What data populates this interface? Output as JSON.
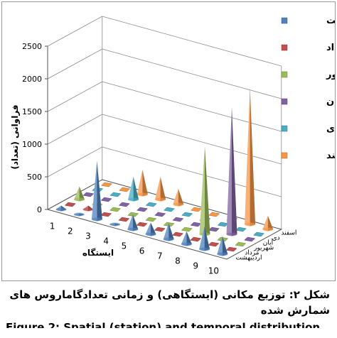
{
  "chart_data": {
    "type": "bar",
    "style": "3d-cone",
    "categories": [
      "1",
      "2",
      "3",
      "4",
      "5",
      "6",
      "7",
      "8",
      "9",
      "10"
    ],
    "xlabel": "ایستگاه",
    "ylabel": "فراوانی (تعداد)",
    "ylim": [
      0,
      2500
    ],
    "yticks": [
      0,
      500,
      1000,
      1500,
      2000,
      2500
    ],
    "grid": true,
    "legend_position": "right",
    "series": [
      {
        "name": "اردیبهشت",
        "color": "#4f81bd",
        "values": [
          60,
          20,
          900,
          20,
          230,
          180,
          250,
          200,
          350,
          280
        ]
      },
      {
        "name": "مرداد",
        "color": "#c0504d",
        "values": [
          10,
          60,
          10,
          10,
          10,
          10,
          10,
          10,
          10,
          10
        ]
      },
      {
        "name": "شهریور",
        "color": "#9bbb59",
        "values": [
          200,
          30,
          10,
          10,
          10,
          10,
          10,
          1350,
          10,
          10
        ]
      },
      {
        "name": "آبان",
        "color": "#8064a2",
        "values": [
          10,
          10,
          10,
          10,
          10,
          10,
          10,
          10,
          1950,
          10
        ]
      },
      {
        "name": "دی",
        "color": "#4bacc6",
        "values": [
          10,
          10,
          350,
          10,
          10,
          10,
          10,
          10,
          10,
          10
        ]
      },
      {
        "name": "اسفند",
        "color": "#f79646",
        "values": [
          10,
          10,
          380,
          350,
          240,
          10,
          10,
          10,
          2100,
          210
        ]
      }
    ]
  },
  "caption": {
    "line1": "شکل ۲: توزیع مکانی (ایستگاهی) و زمانی تعدادگاماروس های شمارش شده",
    "line2": "Figure 2: Spatial (station) and temporal distribution"
  }
}
